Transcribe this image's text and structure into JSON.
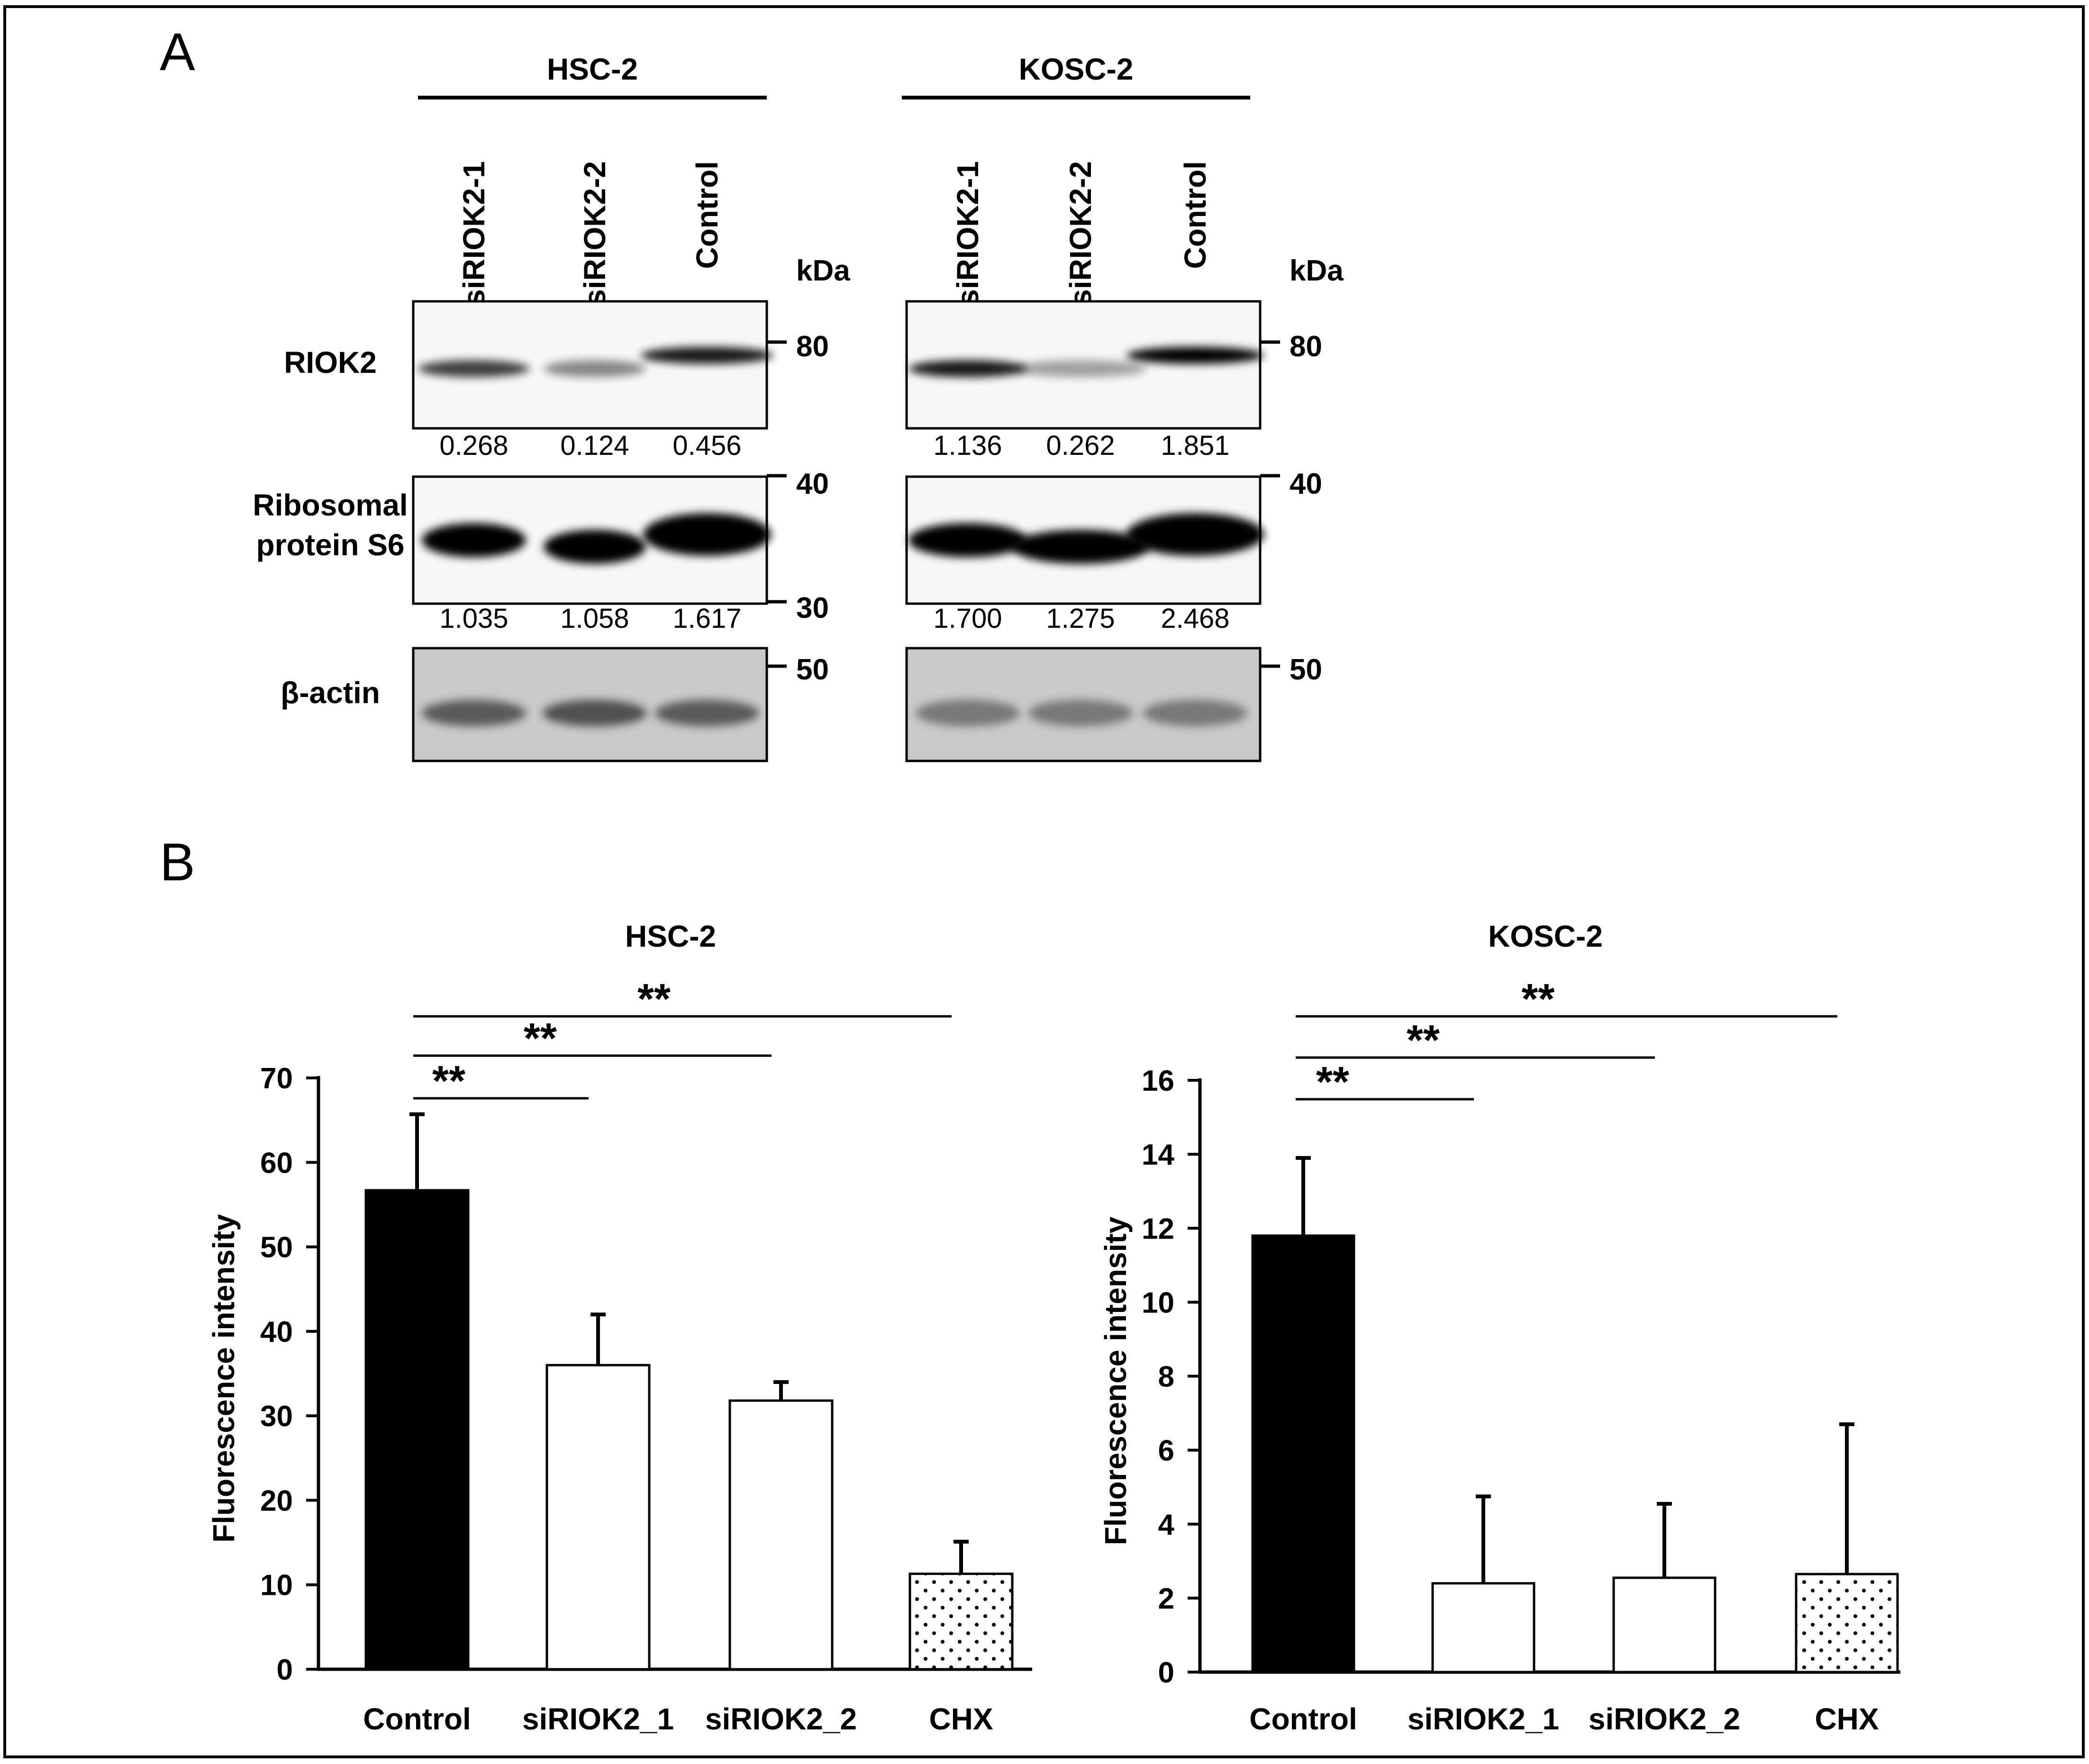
{
  "panel_a": {
    "label": "A",
    "kda_label": "kDa",
    "blots": [
      {
        "cell_line": "HSC-2",
        "lanes": [
          "siRIOK2-1",
          "siRIOK2-2",
          "Control"
        ],
        "rows": [
          {
            "label": [
              "RIOK2"
            ],
            "markers": [
              "80"
            ],
            "quant": [
              "0.268",
              "0.124",
              "0.456"
            ]
          },
          {
            "label": [
              "Ribosomal",
              "protein S6"
            ],
            "markers": [
              "40",
              "30"
            ],
            "quant": [
              "1.035",
              "1.058",
              "1.617"
            ]
          },
          {
            "label": [
              "β-actin"
            ],
            "markers": [
              "50"
            ],
            "quant": []
          }
        ]
      },
      {
        "cell_line": "KOSC-2",
        "lanes": [
          "siRIOK2-1",
          "siRIOK2-2",
          "Control"
        ],
        "rows": [
          {
            "label": [],
            "markers": [
              "80"
            ],
            "quant": [
              "1.136",
              "0.262",
              "1.851"
            ]
          },
          {
            "label": [],
            "markers": [
              "40"
            ],
            "quant": [
              "1.700",
              "1.275",
              "2.468"
            ]
          },
          {
            "label": [],
            "markers": [
              "50"
            ],
            "quant": []
          }
        ]
      }
    ]
  },
  "panel_b": {
    "label": "B"
  },
  "chart_data": [
    {
      "type": "bar",
      "title": "HSC-2",
      "xlabel": "",
      "ylabel": "Fluorescence intensity",
      "categories": [
        "Control",
        "siRIOK2_1",
        "siRIOK2_2",
        "CHX"
      ],
      "values": [
        56.7,
        36.0,
        31.8,
        11.3
      ],
      "errors": [
        9.0,
        6.0,
        2.2,
        3.8
      ],
      "fills": [
        "black",
        "white",
        "white",
        "dotted"
      ],
      "ylim": [
        0,
        70
      ],
      "yticks": [
        0,
        10,
        20,
        30,
        40,
        50,
        60,
        70
      ],
      "significance": [
        {
          "from": "Control",
          "to": "siRIOK2_1",
          "label": "**"
        },
        {
          "from": "Control",
          "to": "siRIOK2_2",
          "label": "**"
        },
        {
          "from": "Control",
          "to": "CHX",
          "label": "**"
        }
      ],
      "grid": false
    },
    {
      "type": "bar",
      "title": "KOSC-2",
      "xlabel": "",
      "ylabel": "Fluorescence intensity",
      "categories": [
        "Control",
        "siRIOK2_1",
        "siRIOK2_2",
        "CHX"
      ],
      "values": [
        11.8,
        2.4,
        2.55,
        2.65
      ],
      "errors": [
        2.1,
        2.35,
        2.0,
        4.05
      ],
      "fills": [
        "black",
        "white",
        "white",
        "dotted"
      ],
      "ylim": [
        0,
        16
      ],
      "yticks": [
        0,
        2,
        4,
        6,
        8,
        10,
        12,
        14,
        16
      ],
      "significance": [
        {
          "from": "Control",
          "to": "siRIOK2_1",
          "label": "**"
        },
        {
          "from": "Control",
          "to": "siRIOK2_2",
          "label": "**"
        },
        {
          "from": "Control",
          "to": "CHX",
          "label": "**"
        }
      ],
      "grid": false
    }
  ]
}
